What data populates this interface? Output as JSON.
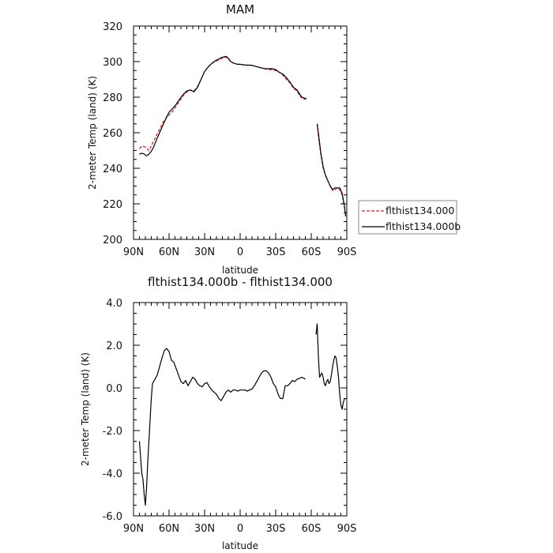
{
  "chart_data": [
    {
      "type": "line",
      "title": "MAM",
      "xlabel": "latitude",
      "ylabel": "2-meter Temp (land) (K)",
      "x_ticks": [
        "90N",
        "60N",
        "30N",
        "0",
        "30S",
        "60S",
        "90S"
      ],
      "y_ticks": [
        "200",
        "220",
        "240",
        "260",
        "280",
        "300",
        "320"
      ],
      "xlim": [
        90,
        -90
      ],
      "ylim": [
        200,
        320
      ],
      "grid": false,
      "legend_position": "right, outside plot",
      "series": [
        {
          "name": "flthist134.000",
          "color": "#d62020",
          "style": "dashed",
          "segments": [
            [
              [
                85,
                251
              ],
              [
                83,
                252.5
              ],
              [
                80,
                252
              ],
              [
                77,
                250
              ],
              [
                74,
                254
              ],
              [
                71,
                258
              ],
              [
                68,
                262
              ],
              [
                65,
                266
              ],
              [
                62,
                268.5
              ],
              [
                60,
                270
              ],
              [
                57,
                272
              ],
              [
                54,
                275
              ],
              [
                51,
                278
              ],
              [
                48,
                281
              ],
              [
                45,
                283
              ],
              [
                42,
                284
              ],
              [
                39,
                283.5
              ],
              [
                36,
                286
              ],
              [
                33,
                290
              ],
              [
                30,
                294.5
              ],
              [
                27,
                297
              ],
              [
                24,
                299
              ],
              [
                21,
                300
              ],
              [
                18,
                301
              ],
              [
                15,
                302
              ],
              [
                12,
                302.5
              ],
              [
                10,
                301.5
              ],
              [
                8,
                300
              ],
              [
                5,
                299
              ],
              [
                2,
                298.5
              ],
              [
                0,
                298.5
              ],
              [
                -3,
                298.2
              ],
              [
                -6,
                298
              ],
              [
                -9,
                298
              ],
              [
                -12,
                297.5
              ],
              [
                -15,
                297
              ],
              [
                -18,
                296.5
              ],
              [
                -21,
                296
              ],
              [
                -24,
                295.5
              ],
              [
                -27,
                295.5
              ],
              [
                -30,
                295
              ],
              [
                -33,
                294
              ],
              [
                -36,
                292.5
              ],
              [
                -39,
                290
              ],
              [
                -42,
                288
              ],
              [
                -45,
                285
              ],
              [
                -48,
                283.5
              ],
              [
                -50,
                281
              ],
              [
                -52,
                279.5
              ],
              [
                -54,
                279
              ],
              [
                -55,
                279
              ],
              [
                -56,
                280
              ]
            ],
            [
              [
                -65,
                265
              ],
              [
                -66,
                258
              ],
              [
                -68,
                248
              ],
              [
                -70,
                240
              ],
              [
                -72,
                236
              ],
              [
                -74,
                233
              ],
              [
                -76,
                230
              ],
              [
                -78,
                227.5
              ],
              [
                -80,
                228
              ],
              [
                -82,
                229
              ],
              [
                -84,
                228
              ],
              [
                -86,
                225
              ],
              [
                -88,
                218
              ],
              [
                -89,
                214
              ]
            ]
          ]
        },
        {
          "name": "flthist134.000b",
          "color": "#000000",
          "style": "solid",
          "segments": [
            [
              [
                85,
                248
              ],
              [
                83,
                248.5
              ],
              [
                81,
                248
              ],
              [
                79,
                247
              ],
              [
                77,
                248
              ],
              [
                75,
                249.5
              ],
              [
                73,
                252
              ],
              [
                70,
                257
              ],
              [
                67,
                261.5
              ],
              [
                64,
                266
              ],
              [
                62,
                269
              ],
              [
                60,
                271.5
              ],
              [
                57,
                273.5
              ],
              [
                54,
                276
              ],
              [
                51,
                279
              ],
              [
                48,
                281.5
              ],
              [
                45,
                283.5
              ],
              [
                42,
                284
              ],
              [
                39,
                283
              ],
              [
                36,
                285.5
              ],
              [
                33,
                290
              ],
              [
                30,
                294.5
              ],
              [
                27,
                297
              ],
              [
                24,
                299
              ],
              [
                21,
                300.5
              ],
              [
                18,
                301.5
              ],
              [
                15,
                302.5
              ],
              [
                12,
                303
              ],
              [
                10,
                302
              ],
              [
                8,
                300
              ],
              [
                5,
                299
              ],
              [
                2,
                298.5
              ],
              [
                0,
                298.5
              ],
              [
                -3,
                298.2
              ],
              [
                -6,
                298
              ],
              [
                -9,
                298
              ],
              [
                -12,
                297.5
              ],
              [
                -15,
                297
              ],
              [
                -18,
                296.5
              ],
              [
                -21,
                296
              ],
              [
                -24,
                296
              ],
              [
                -27,
                296
              ],
              [
                -30,
                295.5
              ],
              [
                -33,
                294
              ],
              [
                -36,
                293
              ],
              [
                -39,
                291
              ],
              [
                -42,
                288.5
              ],
              [
                -45,
                285.5
              ],
              [
                -48,
                284
              ],
              [
                -50,
                282
              ],
              [
                -52,
                280
              ],
              [
                -54,
                279.5
              ],
              [
                -55,
                279
              ],
              [
                -56,
                279.5
              ]
            ],
            [
              [
                -65,
                265
              ],
              [
                -66,
                260
              ],
              [
                -68,
                249
              ],
              [
                -70,
                241
              ],
              [
                -72,
                236
              ],
              [
                -74,
                233
              ],
              [
                -76,
                230
              ],
              [
                -78,
                228
              ],
              [
                -80,
                229
              ],
              [
                -82,
                229
              ],
              [
                -84,
                229
              ],
              [
                -86,
                226
              ],
              [
                -88,
                219
              ],
              [
                -89,
                213
              ]
            ]
          ]
        }
      ]
    },
    {
      "type": "line",
      "title": "flthist134.000b - flthist134.000",
      "xlabel": "latitude",
      "ylabel": "2-meter Temp (land) (K)",
      "x_ticks": [
        "90N",
        "60N",
        "30N",
        "0",
        "30S",
        "60S",
        "90S"
      ],
      "y_ticks": [
        "-6.0",
        "-4.0",
        "-2.0",
        "0.0",
        "2.0",
        "4.0"
      ],
      "xlim": [
        90,
        -90
      ],
      "ylim": [
        -6,
        4
      ],
      "grid": false,
      "series": [
        {
          "color": "#000000",
          "style": "solid",
          "segments": [
            [
              [
                85,
                -2.5
              ],
              [
                84,
                -3.3
              ],
              [
                83,
                -4
              ],
              [
                82,
                -4.3
              ],
              [
                81,
                -5
              ],
              [
                80,
                -5.5
              ],
              [
                79,
                -4.7
              ],
              [
                78,
                -3.5
              ],
              [
                77,
                -2.5
              ],
              [
                76,
                -1.5
              ],
              [
                75,
                -0.5
              ],
              [
                74,
                0.2
              ],
              [
                72,
                0.4
              ],
              [
                70,
                0.6
              ],
              [
                68,
                1
              ],
              [
                66,
                1.4
              ],
              [
                64,
                1.75
              ],
              [
                62,
                1.85
              ],
              [
                60,
                1.7
              ],
              [
                58,
                1.3
              ],
              [
                56,
                1.2
              ],
              [
                54,
                0.9
              ],
              [
                52,
                0.6
              ],
              [
                50,
                0.3
              ],
              [
                48,
                0.2
              ],
              [
                46,
                0.35
              ],
              [
                44,
                0.1
              ],
              [
                42,
                0.3
              ],
              [
                40,
                0.5
              ],
              [
                38,
                0.4
              ],
              [
                36,
                0.2
              ],
              [
                34,
                0.1
              ],
              [
                32,
                0.05
              ],
              [
                30,
                0.2
              ],
              [
                28,
                0.25
              ],
              [
                26,
                0.05
              ],
              [
                24,
                -0.1
              ],
              [
                22,
                -0.2
              ],
              [
                20,
                -0.3
              ],
              [
                18,
                -0.5
              ],
              [
                16,
                -0.6
              ],
              [
                14,
                -0.4
              ],
              [
                12,
                -0.2
              ],
              [
                10,
                -0.1
              ],
              [
                8,
                -0.2
              ],
              [
                6,
                -0.1
              ],
              [
                4,
                -0.1
              ],
              [
                2,
                -0.15
              ],
              [
                0,
                -0.1
              ],
              [
                -2,
                -0.1
              ],
              [
                -4,
                -0.1
              ],
              [
                -6,
                -0.15
              ],
              [
                -8,
                -0.1
              ],
              [
                -10,
                -0.05
              ],
              [
                -12,
                0.1
              ],
              [
                -14,
                0.3
              ],
              [
                -16,
                0.5
              ],
              [
                -18,
                0.7
              ],
              [
                -20,
                0.8
              ],
              [
                -22,
                0.8
              ],
              [
                -24,
                0.7
              ],
              [
                -26,
                0.5
              ],
              [
                -28,
                0.2
              ],
              [
                -30,
                0.05
              ],
              [
                -32,
                -0.3
              ],
              [
                -34,
                -0.5
              ],
              [
                -36,
                -0.5
              ],
              [
                -38,
                0.1
              ],
              [
                -40,
                0.1
              ],
              [
                -42,
                0.2
              ],
              [
                -44,
                0.35
              ],
              [
                -46,
                0.3
              ],
              [
                -48,
                0.4
              ],
              [
                -50,
                0.45
              ],
              [
                -52,
                0.5
              ],
              [
                -54,
                0.45
              ],
              [
                -55,
                0.4
              ]
            ],
            [
              [
                -64,
                2.5
              ],
              [
                -65,
                3
              ],
              [
                -66,
                1.5
              ],
              [
                -67,
                0.5
              ],
              [
                -68,
                0.6
              ],
              [
                -69,
                0.7
              ],
              [
                -70,
                0.5
              ],
              [
                -71,
                0.2
              ],
              [
                -72,
                0.1
              ],
              [
                -73,
                0.3
              ],
              [
                -74,
                0.4
              ],
              [
                -75,
                0.2
              ],
              [
                -76,
                0.3
              ],
              [
                -77,
                0.6
              ],
              [
                -78,
                1
              ],
              [
                -79,
                1.3
              ],
              [
                -80,
                1.5
              ],
              [
                -81,
                1.4
              ],
              [
                -82,
                1
              ],
              [
                -83,
                0.5
              ],
              [
                -84,
                -0.3
              ],
              [
                -85,
                -0.8
              ],
              [
                -86,
                -1
              ],
              [
                -87,
                -0.7
              ],
              [
                -88,
                -0.5
              ],
              [
                -89,
                -0.5
              ]
            ]
          ]
        }
      ]
    }
  ]
}
